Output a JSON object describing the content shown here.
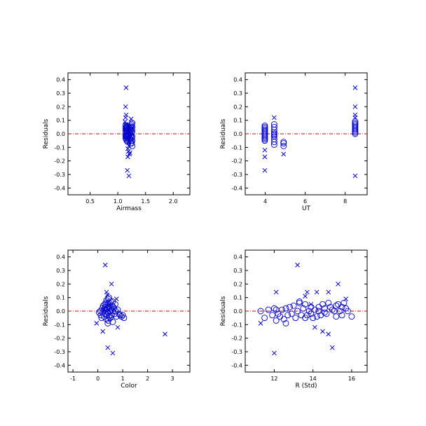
{
  "chart_data": [
    {
      "type": "scatter",
      "xlabel": "Airmass",
      "ylabel": "Residuals",
      "xlim": [
        0.1,
        2.3
      ],
      "ylim": [
        -0.45,
        0.45
      ],
      "xticks": [
        0.5,
        1.0,
        1.5,
        2.0
      ],
      "xtick_labels": [
        "0.5",
        "1.0",
        "1.5",
        "2.0"
      ],
      "yticks": [
        -0.4,
        -0.3,
        -0.2,
        -0.1,
        0.0,
        0.1,
        0.2,
        0.3,
        0.4
      ],
      "ytick_labels": [
        "-0.4",
        "-0.3",
        "-0.2",
        "-0.1",
        "0.0",
        "0.1",
        "0.2",
        "0.3",
        "0.4"
      ],
      "reference_line": 0.0,
      "marker_color": "#0000cc",
      "reference_color": "#cc0000",
      "series": [
        {
          "marker": "circle",
          "x": [
            1.14,
            1.14,
            1.14,
            1.14,
            1.14,
            1.15,
            1.15,
            1.15,
            1.15,
            1.15,
            1.16,
            1.16,
            1.16,
            1.16,
            1.16,
            1.16,
            1.17,
            1.17,
            1.17,
            1.17,
            1.18,
            1.18,
            1.18,
            1.18,
            1.19,
            1.19,
            1.2,
            1.2,
            1.2,
            1.2,
            1.21,
            1.21,
            1.21,
            1.22,
            1.22,
            1.22,
            1.23,
            1.23,
            1.23,
            1.23,
            1.24,
            1.24,
            1.24,
            1.24,
            1.25,
            1.25,
            1.25,
            1.25,
            1.25,
            1.26,
            1.26,
            1.26,
            1.26,
            1.26,
            1.26
          ],
          "y": [
            0.06,
            0.04,
            0.02,
            -0.01,
            -0.03,
            0.05,
            0.03,
            0.0,
            -0.02,
            -0.04,
            0.06,
            0.04,
            0.02,
            0.0,
            -0.02,
            -0.05,
            0.05,
            0.02,
            -0.01,
            -0.03,
            0.04,
            0.01,
            -0.02,
            -0.06,
            0.03,
            -0.01,
            0.05,
            0.02,
            -0.01,
            -0.05,
            0.04,
            0.01,
            -0.03,
            0.03,
            0.0,
            -0.04,
            0.05,
            0.02,
            -0.02,
            -0.07,
            0.06,
            0.03,
            -0.01,
            -0.05,
            0.07,
            0.04,
            0.01,
            -0.03,
            -0.07,
            0.08,
            0.05,
            0.02,
            -0.02,
            -0.05,
            -0.09
          ]
        },
        {
          "marker": "cross",
          "x": [
            1.15,
            1.14,
            1.15,
            1.14,
            1.13,
            1.15,
            1.2,
            1.18,
            1.19,
            1.21,
            1.22,
            1.18,
            1.17,
            1.24,
            1.2
          ],
          "y": [
            0.34,
            0.2,
            0.14,
            0.12,
            0.09,
            0.07,
            -0.09,
            -0.11,
            -0.13,
            -0.15,
            -0.14,
            -0.17,
            -0.27,
            0.11,
            -0.31
          ]
        }
      ]
    },
    {
      "type": "scatter",
      "xlabel": "UT",
      "ylabel": "Residuals",
      "xlim": [
        3.0,
        9.1
      ],
      "ylim": [
        -0.45,
        0.45
      ],
      "xticks": [
        4,
        6,
        8
      ],
      "xtick_labels": [
        "4",
        "6",
        "8"
      ],
      "yticks": [
        -0.4,
        -0.3,
        -0.2,
        -0.1,
        0.0,
        0.1,
        0.2,
        0.3,
        0.4
      ],
      "ytick_labels": [
        "-0.4",
        "-0.3",
        "-0.2",
        "-0.1",
        "0.0",
        "0.1",
        "0.2",
        "0.3",
        "0.4"
      ],
      "reference_line": 0.0,
      "marker_color": "#0000cc",
      "reference_color": "#cc0000",
      "series": [
        {
          "marker": "circle",
          "x": [
            3.98,
            3.98,
            3.98,
            3.98,
            3.98,
            3.98,
            3.98,
            3.98,
            3.98,
            3.98,
            3.98,
            3.98,
            4.45,
            4.45,
            4.45,
            4.45,
            4.45,
            4.45,
            4.45,
            4.45,
            4.45,
            4.45,
            4.92,
            4.92,
            4.92,
            8.5,
            8.5,
            8.5,
            8.5,
            8.5,
            8.5,
            8.5,
            8.5,
            8.5,
            8.5
          ],
          "y": [
            0.06,
            0.05,
            0.04,
            0.03,
            0.02,
            0.01,
            0.0,
            -0.01,
            -0.02,
            -0.03,
            -0.04,
            -0.05,
            0.07,
            0.05,
            0.03,
            0.01,
            0.0,
            -0.01,
            -0.02,
            -0.04,
            -0.06,
            -0.08,
            -0.06,
            -0.07,
            -0.09,
            0.09,
            0.08,
            0.07,
            0.06,
            0.05,
            0.04,
            0.03,
            0.02,
            0.01,
            0.0
          ]
        },
        {
          "marker": "cross",
          "x": [
            3.98,
            3.98,
            3.98,
            4.45,
            4.92,
            8.5,
            8.5,
            8.5,
            8.5,
            8.5
          ],
          "y": [
            -0.12,
            -0.17,
            -0.27,
            0.12,
            -0.15,
            0.34,
            0.2,
            0.14,
            0.12,
            -0.31
          ]
        }
      ]
    },
    {
      "type": "scatter",
      "xlabel": "Color",
      "ylabel": "Residuals",
      "xlim": [
        -1.2,
        3.7
      ],
      "ylim": [
        -0.45,
        0.45
      ],
      "xticks": [
        -1,
        0,
        1,
        2,
        3
      ],
      "xtick_labels": [
        "-1",
        "0",
        "1",
        "2",
        "3"
      ],
      "yticks": [
        -0.4,
        -0.3,
        -0.2,
        -0.1,
        0.0,
        0.1,
        0.2,
        0.3,
        0.4
      ],
      "ytick_labels": [
        "-0.4",
        "-0.3",
        "-0.2",
        "-0.1",
        "0.0",
        "0.1",
        "0.2",
        "0.3",
        "0.4"
      ],
      "reference_line": 0.0,
      "marker_color": "#0000cc",
      "reference_color": "#cc0000",
      "series": [
        {
          "marker": "circle",
          "x": [
            0.05,
            0.1,
            0.12,
            0.15,
            0.18,
            0.2,
            0.22,
            0.25,
            0.25,
            0.28,
            0.3,
            0.3,
            0.32,
            0.33,
            0.35,
            0.35,
            0.37,
            0.38,
            0.4,
            0.4,
            0.42,
            0.42,
            0.45,
            0.45,
            0.47,
            0.48,
            0.5,
            0.5,
            0.52,
            0.55,
            0.55,
            0.58,
            0.6,
            0.6,
            0.62,
            0.65,
            0.68,
            0.7,
            0.72,
            0.75,
            0.8,
            0.85,
            0.9,
            0.95,
            1.0,
            1.05,
            0.3,
            0.45,
            0.6,
            0.4
          ],
          "y": [
            -0.01,
            0.0,
            -0.03,
            -0.05,
            0.02,
            -0.01,
            0.04,
            0.01,
            -0.04,
            0.05,
            0.03,
            -0.02,
            0.06,
            0.0,
            -0.06,
            0.08,
            0.02,
            -0.03,
            0.05,
            -0.01,
            0.09,
            -0.07,
            0.03,
            -0.04,
            0.06,
            0.0,
            0.02,
            -0.05,
            0.07,
            0.01,
            -0.03,
            0.04,
            0.0,
            -0.08,
            0.03,
            0.02,
            -0.02,
            0.05,
            0.0,
            -0.04,
            0.01,
            -0.02,
            -0.03,
            -0.04,
            -0.03,
            -0.05,
            0.01,
            0.1,
            0.07,
            -0.09
          ]
        },
        {
          "marker": "cross",
          "x": [
            -0.05,
            0.3,
            0.35,
            0.38,
            0.55,
            0.75,
            0.8,
            0.4,
            0.6,
            2.7,
            0.2,
            0.45
          ],
          "y": [
            -0.09,
            0.34,
            0.14,
            0.12,
            0.2,
            0.09,
            -0.12,
            -0.27,
            -0.31,
            -0.17,
            -0.15,
            0.05
          ]
        }
      ]
    },
    {
      "type": "scatter",
      "xlabel": "R (Std)",
      "ylabel": "Residuals",
      "xlim": [
        10.5,
        16.8
      ],
      "ylim": [
        -0.45,
        0.45
      ],
      "xticks": [
        12,
        14,
        16
      ],
      "xtick_labels": [
        "12",
        "14",
        "16"
      ],
      "yticks": [
        -0.4,
        -0.3,
        -0.2,
        -0.1,
        0.0,
        0.1,
        0.2,
        0.3,
        0.4
      ],
      "ytick_labels": [
        "-0.4",
        "-0.3",
        "-0.2",
        "-0.1",
        "0.0",
        "0.1",
        "0.2",
        "0.3",
        "0.4"
      ],
      "reference_line": 0.0,
      "marker_color": "#0000cc",
      "reference_color": "#cc0000",
      "series": [
        {
          "marker": "circle",
          "x": [
            11.3,
            11.5,
            11.7,
            11.9,
            12.0,
            12.1,
            12.2,
            12.3,
            12.4,
            12.5,
            12.6,
            12.7,
            12.8,
            12.9,
            13.0,
            13.1,
            13.2,
            13.3,
            13.4,
            13.5,
            13.6,
            13.7,
            13.8,
            13.9,
            14.0,
            14.1,
            14.2,
            14.3,
            14.4,
            14.5,
            14.6,
            14.7,
            14.8,
            14.9,
            15.0,
            15.1,
            15.2,
            15.3,
            15.4,
            15.5,
            15.6,
            15.7,
            15.8,
            16.0,
            12.6,
            13.3,
            13.9,
            14.6,
            15.2,
            15.5,
            12.1,
            13.6,
            14.3
          ],
          "y": [
            0.0,
            -0.05,
            0.01,
            -0.03,
            0.02,
            -0.07,
            -0.02,
            -0.04,
            0.01,
            -0.06,
            0.02,
            -0.03,
            0.03,
            -0.02,
            0.04,
            -0.05,
            0.0,
            0.07,
            -0.03,
            0.02,
            0.05,
            -0.03,
            0.0,
            0.03,
            -0.05,
            0.01,
            -0.04,
            0.0,
            -0.03,
            0.05,
            0.02,
            -0.02,
            0.06,
            0.03,
            0.01,
            0.0,
            -0.04,
            0.05,
            0.0,
            0.03,
            0.06,
            0.02,
            0.0,
            -0.04,
            -0.09,
            0.06,
            -0.02,
            -0.01,
            0.04,
            -0.03,
            0.01,
            -0.05,
            0.03
          ]
        },
        {
          "marker": "cross",
          "x": [
            13.2,
            13.7,
            14.2,
            14.8,
            15.3,
            15.7,
            12.1,
            14.1,
            14.5,
            14.8,
            15.0,
            12.0,
            11.3,
            13.9,
            13.6
          ],
          "y": [
            0.34,
            0.14,
            0.14,
            0.14,
            0.2,
            0.09,
            0.14,
            -0.12,
            -0.15,
            -0.17,
            -0.27,
            -0.31,
            -0.09,
            0.05,
            0.11
          ]
        }
      ]
    }
  ]
}
